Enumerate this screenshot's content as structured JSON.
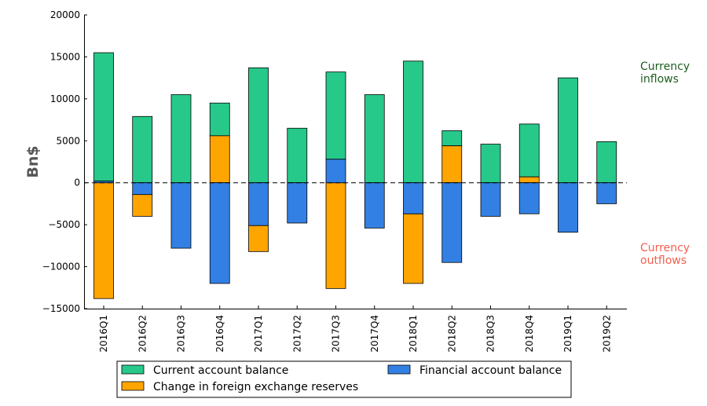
{
  "chart_data": {
    "type": "bar",
    "stacked": true,
    "categories": [
      "2016Q1",
      "2016Q2",
      "2016Q3",
      "2016Q4",
      "2017Q1",
      "2017Q2",
      "2017Q3",
      "2017Q4",
      "2018Q1",
      "2018Q2",
      "2018Q3",
      "2018Q4",
      "2019Q1",
      "2019Q2"
    ],
    "series": [
      {
        "name": "Current account balance",
        "color": "#27c98a",
        "base": [
          200,
          0,
          0,
          5600,
          0,
          0,
          2800,
          0,
          0,
          4400,
          0,
          700,
          0,
          0
        ],
        "values": [
          15300,
          7900,
          10500,
          3900,
          13700,
          6500,
          10400,
          10500,
          14500,
          1800,
          4600,
          6300,
          12500,
          4900
        ]
      },
      {
        "name": "Change in foreign exchange reserves",
        "color": "#ffa500",
        "base": [
          0,
          -1400,
          0,
          0,
          -5100,
          0,
          0,
          0,
          -3700,
          0,
          0,
          0,
          0,
          0
        ],
        "values": [
          -13800,
          -2600,
          0,
          5600,
          -3100,
          0,
          -12600,
          0,
          -8300,
          4400,
          0,
          700,
          0,
          0
        ]
      },
      {
        "name": "Financial account balance",
        "color": "#3380e4",
        "base": [
          0,
          0,
          0,
          0,
          0,
          0,
          0,
          0,
          0,
          0,
          0,
          0,
          0,
          0
        ],
        "values": [
          200,
          -1400,
          -7800,
          -12000,
          -5100,
          -4800,
          2800,
          -5400,
          -3700,
          -9500,
          -4000,
          -3700,
          -5900,
          -2500
        ]
      }
    ],
    "ylabel": "Bn$",
    "ylim": [
      -15000,
      20000
    ],
    "yticks": [
      20000,
      15000,
      10000,
      5000,
      0,
      -5000,
      -10000,
      -15000
    ],
    "ytick_labels": [
      "20000",
      "15000",
      "10000",
      "5000",
      "0",
      "−5000",
      "−10000",
      "−15000"
    ],
    "zero_line": "dashed",
    "grid": false,
    "legend_position": "bottom",
    "annotations": [
      {
        "text_lines": [
          "Currency",
          "inflows"
        ],
        "color": "#1e5e20"
      },
      {
        "text_lines": [
          "Currency",
          "outflows"
        ],
        "color": "#f46050"
      }
    ]
  }
}
